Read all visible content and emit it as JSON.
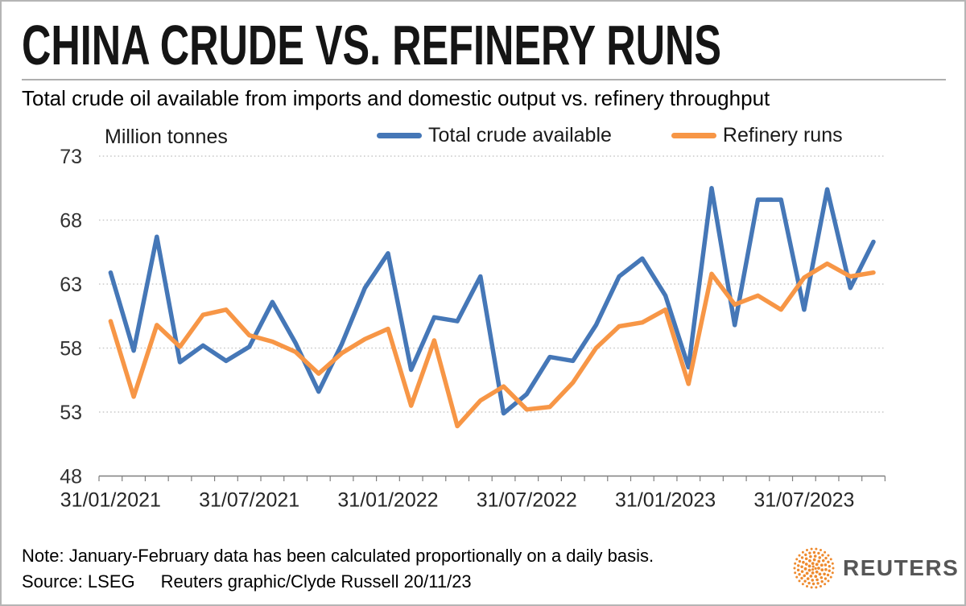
{
  "header": {
    "title": "CHINA CRUDE VS. REFINERY RUNS",
    "subtitle": "Total crude oil available from imports and domestic output vs. refinery throughput"
  },
  "chart_data": {
    "type": "line",
    "unit_label": "Million tonnes",
    "legend_position": "top",
    "grid": "horizontal-dotted",
    "ylim": [
      48,
      73
    ],
    "y_ticks": [
      48,
      53,
      58,
      63,
      68,
      73
    ],
    "x_tick_labels": [
      "31/01/2021",
      "31/07/2021",
      "31/01/2022",
      "31/07/2022",
      "31/01/2023",
      "31/07/2023"
    ],
    "x_tick_point_indices": [
      0,
      6,
      12,
      18,
      24,
      30
    ],
    "categories": [
      "Jan 2021",
      "Feb 2021",
      "Mar 2021",
      "Apr 2021",
      "May 2021",
      "Jun 2021",
      "Jul 2021",
      "Aug 2021",
      "Sep 2021",
      "Oct 2021",
      "Nov 2021",
      "Dec 2021",
      "Jan 2022",
      "Feb 2022",
      "Mar 2022",
      "Apr 2022",
      "May 2022",
      "Jun 2022",
      "Jul 2022",
      "Aug 2022",
      "Sep 2022",
      "Oct 2022",
      "Nov 2022",
      "Dec 2022",
      "Jan 2023",
      "Feb 2023",
      "Mar 2023",
      "Apr 2023",
      "May 2023",
      "Jun 2023",
      "Jul 2023",
      "Aug 2023",
      "Sep 2023",
      "Oct 2023"
    ],
    "series": [
      {
        "name": "Total crude available",
        "color": "#4577B7",
        "values": [
          63.9,
          57.8,
          66.7,
          56.9,
          58.2,
          57.0,
          58.1,
          61.6,
          58.4,
          54.6,
          58.3,
          62.7,
          65.4,
          56.3,
          60.4,
          60.1,
          63.6,
          52.9,
          54.4,
          57.3,
          57.0,
          59.8,
          63.6,
          65.0,
          62.1,
          56.5,
          70.5,
          59.8,
          69.6,
          69.6,
          61.0,
          70.4,
          62.7,
          66.3
        ]
      },
      {
        "name": "Refinery runs",
        "color": "#F79646",
        "values": [
          60.1,
          54.2,
          59.8,
          58.1,
          60.6,
          61.0,
          59.0,
          58.5,
          57.7,
          56.0,
          57.6,
          58.7,
          59.5,
          53.5,
          58.6,
          51.9,
          53.9,
          55.0,
          53.2,
          53.4,
          55.3,
          58.0,
          59.7,
          60.0,
          61.0,
          55.2,
          63.8,
          61.4,
          62.1,
          61.0,
          63.5,
          64.6,
          63.6,
          63.9
        ]
      }
    ]
  },
  "footer": {
    "note": "Note: January-February data has been calculated proportionally on a daily basis.",
    "source": "Source: LSEG",
    "credit": "Reuters graphic/Clyde Russell 20/11/23",
    "logo_text": "REUTERS",
    "logo_color": "#EE8A2E"
  }
}
